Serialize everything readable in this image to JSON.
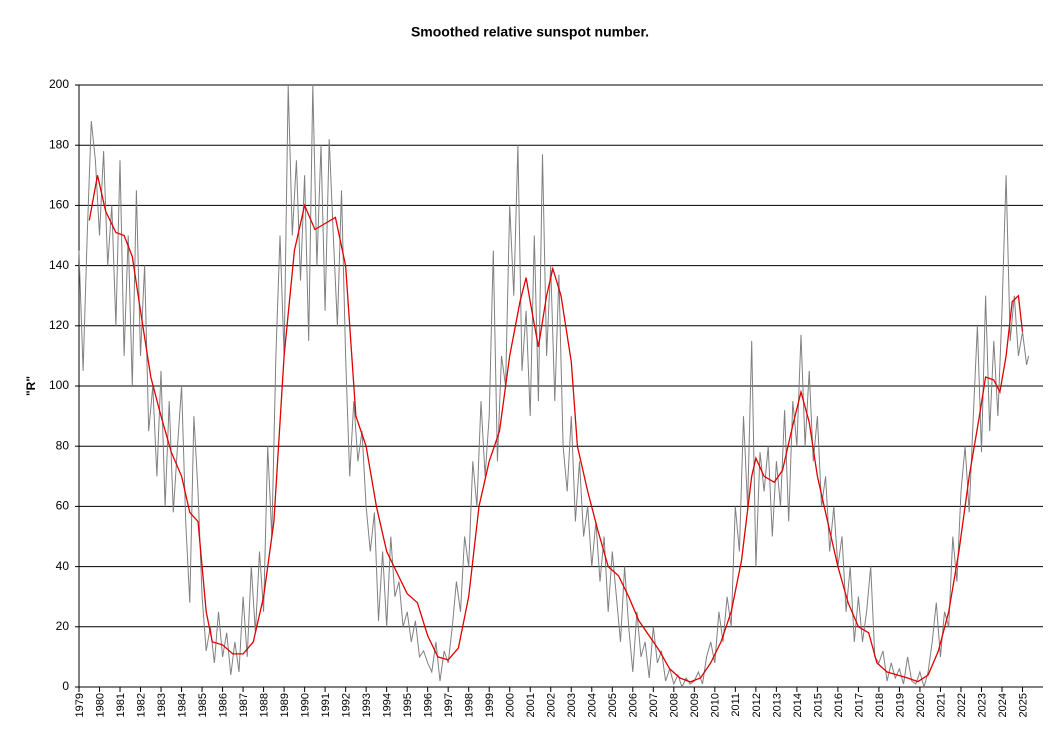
{
  "chart_data": {
    "type": "line",
    "title": "Smoothed relative sunspot number.",
    "ylabel": "\"R\"",
    "xlim": [
      1979,
      2026
    ],
    "ylim": [
      0,
      200
    ],
    "yticks": [
      0,
      20,
      40,
      60,
      80,
      100,
      120,
      140,
      160,
      180,
      200
    ],
    "xticks": [
      1979,
      1980,
      1981,
      1982,
      1983,
      1984,
      1985,
      1986,
      1987,
      1988,
      1989,
      1990,
      1991,
      1992,
      1993,
      1994,
      1995,
      1996,
      1997,
      1998,
      1999,
      2000,
      2001,
      2002,
      2003,
      2004,
      2005,
      2006,
      2007,
      2008,
      2009,
      2010,
      2011,
      2012,
      2013,
      2014,
      2015,
      2016,
      2017,
      2018,
      2019,
      2020,
      2021,
      2022,
      2023,
      2024,
      2025
    ],
    "grid": true,
    "series": [
      {
        "color": "#808080",
        "x": [
          1979.0,
          1979.2,
          1979.4,
          1979.6,
          1979.8,
          1980.0,
          1980.2,
          1980.4,
          1980.6,
          1980.8,
          1981.0,
          1981.2,
          1981.4,
          1981.6,
          1981.8,
          1982.0,
          1982.2,
          1982.4,
          1982.6,
          1982.8,
          1983.0,
          1983.2,
          1983.4,
          1983.6,
          1983.8,
          1984.0,
          1984.2,
          1984.4,
          1984.6,
          1984.8,
          1985.0,
          1985.2,
          1985.4,
          1985.6,
          1985.8,
          1986.0,
          1986.2,
          1986.4,
          1986.6,
          1986.8,
          1987.0,
          1987.2,
          1987.4,
          1987.6,
          1987.8,
          1988.0,
          1988.2,
          1988.4,
          1988.6,
          1988.8,
          1989.0,
          1989.2,
          1989.4,
          1989.6,
          1989.8,
          1990.0,
          1990.2,
          1990.4,
          1990.6,
          1990.8,
          1991.0,
          1991.2,
          1991.4,
          1991.6,
          1991.8,
          1992.0,
          1992.2,
          1992.4,
          1992.6,
          1992.8,
          1993.0,
          1993.2,
          1993.4,
          1993.6,
          1993.8,
          1994.0,
          1994.2,
          1994.4,
          1994.6,
          1994.8,
          1995.0,
          1995.2,
          1995.4,
          1995.6,
          1995.8,
          1996.0,
          1996.2,
          1996.4,
          1996.6,
          1996.8,
          1997.0,
          1997.2,
          1997.4,
          1997.6,
          1997.8,
          1998.0,
          1998.2,
          1998.4,
          1998.6,
          1998.8,
          1999.0,
          1999.2,
          1999.4,
          1999.6,
          1999.8,
          2000.0,
          2000.2,
          2000.4,
          2000.6,
          2000.8,
          2001.0,
          2001.2,
          2001.4,
          2001.6,
          2001.8,
          2002.0,
          2002.2,
          2002.4,
          2002.6,
          2002.8,
          2003.0,
          2003.2,
          2003.4,
          2003.6,
          2003.8,
          2004.0,
          2004.2,
          2004.4,
          2004.6,
          2004.8,
          2005.0,
          2005.2,
          2005.4,
          2005.6,
          2005.8,
          2006.0,
          2006.2,
          2006.4,
          2006.6,
          2006.8,
          2007.0,
          2007.2,
          2007.4,
          2007.6,
          2007.8,
          2008.0,
          2008.2,
          2008.4,
          2008.6,
          2008.8,
          2009.0,
          2009.2,
          2009.4,
          2009.6,
          2009.8,
          2010.0,
          2010.2,
          2010.4,
          2010.6,
          2010.8,
          2011.0,
          2011.2,
          2011.4,
          2011.6,
          2011.8,
          2012.0,
          2012.2,
          2012.4,
          2012.6,
          2012.8,
          2013.0,
          2013.2,
          2013.4,
          2013.6,
          2013.8,
          2014.0,
          2014.2,
          2014.4,
          2014.6,
          2014.8,
          2015.0,
          2015.2,
          2015.4,
          2015.6,
          2015.8,
          2016.0,
          2016.2,
          2016.4,
          2016.6,
          2016.8,
          2017.0,
          2017.2,
          2017.4,
          2017.6,
          2017.8,
          2018.0,
          2018.2,
          2018.4,
          2018.6,
          2018.8,
          2019.0,
          2019.2,
          2019.4,
          2019.6,
          2019.8,
          2020.0,
          2020.2,
          2020.4,
          2020.6,
          2020.8,
          2021.0,
          2021.2,
          2021.4,
          2021.6,
          2021.8,
          2022.0,
          2022.2,
          2022.4,
          2022.6,
          2022.8,
          2023.0,
          2023.2,
          2023.4,
          2023.6,
          2023.8,
          2024.0,
          2024.2,
          2024.4,
          2024.6,
          2024.8,
          2025.0,
          2025.2,
          2025.3
        ],
        "values": [
          145,
          105,
          150,
          188,
          175,
          150,
          178,
          140,
          160,
          120,
          175,
          110,
          150,
          100,
          165,
          110,
          140,
          85,
          100,
          70,
          105,
          60,
          95,
          58,
          80,
          100,
          55,
          28,
          90,
          65,
          30,
          12,
          20,
          8,
          25,
          10,
          18,
          4,
          15,
          5,
          30,
          10,
          40,
          18,
          45,
          25,
          80,
          50,
          110,
          150,
          110,
          200,
          150,
          175,
          135,
          170,
          115,
          200,
          140,
          180,
          125,
          182,
          150,
          120,
          165,
          110,
          70,
          95,
          75,
          85,
          60,
          45,
          58,
          22,
          45,
          20,
          50,
          30,
          35,
          20,
          25,
          15,
          22,
          10,
          12,
          8,
          5,
          15,
          2,
          12,
          8,
          20,
          35,
          25,
          50,
          40,
          75,
          60,
          95,
          70,
          90,
          145,
          75,
          110,
          100,
          160,
          130,
          180,
          105,
          125,
          90,
          150,
          95,
          177,
          110,
          140,
          95,
          137,
          80,
          65,
          90,
          55,
          75,
          50,
          60,
          40,
          55,
          35,
          50,
          25,
          45,
          30,
          15,
          40,
          20,
          5,
          25,
          10,
          15,
          3,
          20,
          8,
          12,
          2,
          6,
          1,
          4,
          0,
          3,
          1,
          2,
          5,
          1,
          10,
          15,
          8,
          25,
          15,
          30,
          20,
          60,
          45,
          90,
          60,
          115,
          40,
          78,
          65,
          80,
          50,
          75,
          60,
          92,
          55,
          95,
          80,
          117,
          80,
          105,
          75,
          90,
          60,
          70,
          45,
          60,
          40,
          50,
          25,
          40,
          15,
          30,
          15,
          25,
          40,
          10,
          8,
          12,
          2,
          8,
          3,
          6,
          1,
          10,
          2,
          1,
          5,
          0,
          5,
          15,
          28,
          10,
          25,
          20,
          50,
          35,
          65,
          80,
          58,
          90,
          120,
          78,
          130,
          85,
          115,
          90,
          125,
          170,
          115,
          130,
          110,
          118,
          107,
          110
        ]
      },
      {
        "color": "#e00000",
        "x": [
          1979.5,
          1979.9,
          1980.3,
          1980.8,
          1981.2,
          1981.6,
          1982.0,
          1982.5,
          1983.0,
          1983.5,
          1984.0,
          1984.4,
          1984.8,
          1985.2,
          1985.5,
          1986.0,
          1986.5,
          1987.0,
          1987.5,
          1988.0,
          1988.5,
          1989.0,
          1989.5,
          1990.0,
          1990.5,
          1991.0,
          1991.5,
          1992.0,
          1992.5,
          1993.0,
          1993.5,
          1994.0,
          1994.5,
          1995.0,
          1995.5,
          1996.0,
          1996.5,
          1997.0,
          1997.5,
          1998.0,
          1998.5,
          1999.0,
          1999.5,
          2000.0,
          2000.5,
          2000.8,
          2001.0,
          2001.4,
          2001.8,
          2002.1,
          2002.5,
          2003.0,
          2003.3,
          2003.8,
          2004.3,
          2004.8,
          2005.3,
          2005.8,
          2006.3,
          2006.8,
          2007.3,
          2007.8,
          2008.3,
          2008.8,
          2009.3,
          2009.8,
          2010.3,
          2010.8,
          2011.3,
          2011.8,
          2012.0,
          2012.4,
          2012.9,
          2013.3,
          2013.8,
          2014.2,
          2014.6,
          2015.0,
          2015.5,
          2016.0,
          2016.5,
          2017.0,
          2017.5,
          2017.9,
          2018.4,
          2018.9,
          2019.4,
          2019.9,
          2020.4,
          2020.9,
          2021.4,
          2021.9,
          2022.4,
          2022.9,
          2023.2,
          2023.6,
          2023.9,
          2024.2,
          2024.5,
          2024.8,
          2025.0
        ],
        "values": [
          155,
          170,
          158,
          151,
          150,
          143,
          125,
          103,
          90,
          78,
          70,
          58,
          55,
          25,
          15,
          14,
          11,
          11,
          15,
          30,
          55,
          110,
          145,
          160,
          152,
          154,
          156,
          140,
          90,
          80,
          60,
          45,
          38,
          31,
          28,
          17,
          10,
          9,
          13,
          30,
          60,
          75,
          85,
          110,
          128,
          136,
          128,
          113,
          130,
          139,
          130,
          108,
          80,
          65,
          52,
          40,
          37,
          30,
          22,
          17,
          12,
          6,
          3,
          1.7,
          3,
          8,
          15,
          25,
          42,
          70,
          76,
          70,
          68,
          72,
          87,
          98,
          88,
          70,
          55,
          40,
          28,
          20,
          18,
          8,
          5,
          4,
          3,
          1.8,
          4,
          12,
          25,
          45,
          70,
          90,
          103,
          102,
          98,
          110,
          128,
          130,
          118
        ]
      }
    ]
  }
}
